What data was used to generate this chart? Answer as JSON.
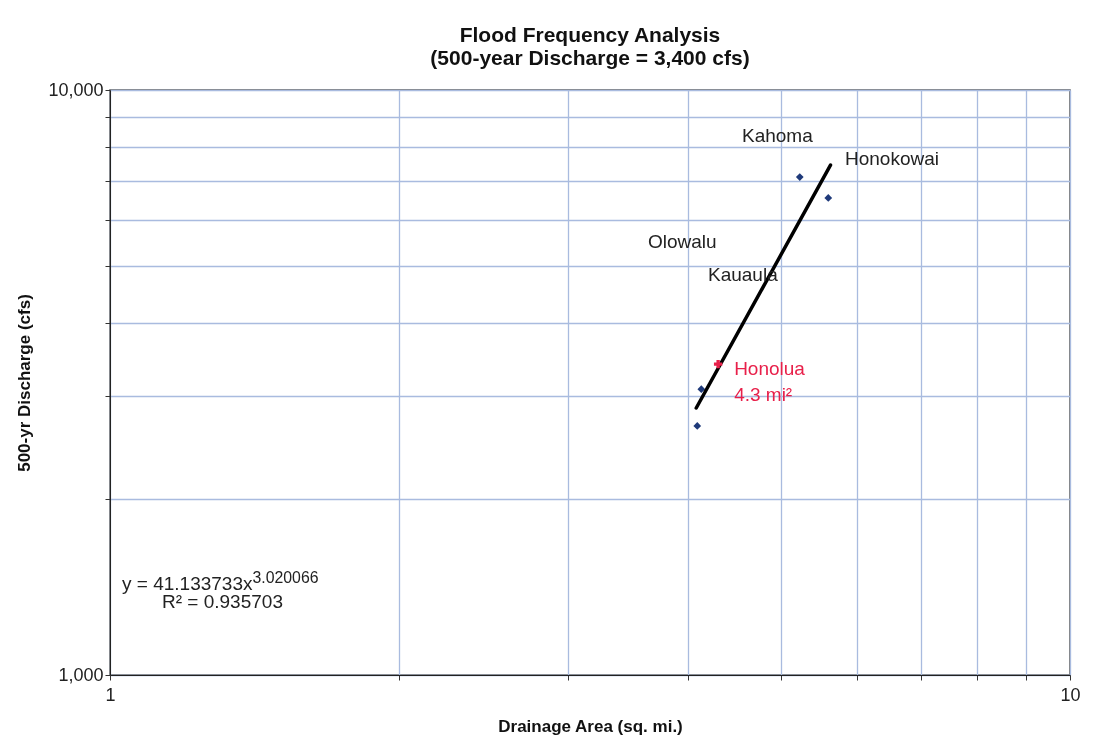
{
  "chart_data": {
    "type": "scatter",
    "title": "Flood Frequency Analysis",
    "subtitle": "(500-year Discharge = 3,400 cfs)",
    "xlabel": "Drainage Area (sq. mi.)",
    "ylabel": "500-yr Discharge (cfs)",
    "log": "xy",
    "grid": true,
    "marker": "diamond",
    "xlim": [
      1,
      10
    ],
    "xticks": [
      1,
      {
        "value": 2,
        "label": null
      },
      {
        "value": 3,
        "label": null
      },
      {
        "value": 4,
        "label": null
      },
      {
        "value": 5,
        "label": null
      },
      {
        "value": 6,
        "label": null
      },
      {
        "value": 7,
        "label": null
      },
      {
        "value": 8,
        "label": null
      },
      {
        "value": 9,
        "label": null
      },
      10
    ],
    "ylim": [
      1000,
      10000
    ],
    "yticks": [
      {
        "value": 1000,
        "label": "1,000"
      },
      {
        "value": 2000,
        "label": null
      },
      {
        "value": 3000,
        "label": null
      },
      {
        "value": 4000,
        "label": null
      },
      {
        "value": 5000,
        "label": null
      },
      {
        "value": 6000,
        "label": null
      },
      {
        "value": 7000,
        "label": null
      },
      {
        "value": 8000,
        "label": null
      },
      {
        "value": 9000,
        "label": null
      },
      {
        "value": 10000,
        "label": "10,000"
      }
    ],
    "series": [
      {
        "color": "#1f3a7a",
        "x": [
          4.09,
          4.13,
          5.23,
          5.6
        ],
        "values": [
          2665,
          3080,
          7100,
          6540
        ]
      },
      {
        "type": "line",
        "color": "#000000",
        "line_style": "solid",
        "marker": "none",
        "x": [
          4.08,
          5.63
        ],
        "values": [
          2860,
          7440
        ]
      },
      {
        "type": "scatter",
        "name": "Honolua\n4.3 mi²",
        "color": "#e8204a",
        "marker": "cross",
        "x": [
          4.3
        ],
        "values": [
          3400
        ]
      }
    ],
    "annotations": [
      "Kahoma",
      "Honokowai",
      "Olowalu",
      "Kauaula",
      "y = 41.133733x$^{3.020066}$",
      "R² = 0.935703"
    ]
  }
}
